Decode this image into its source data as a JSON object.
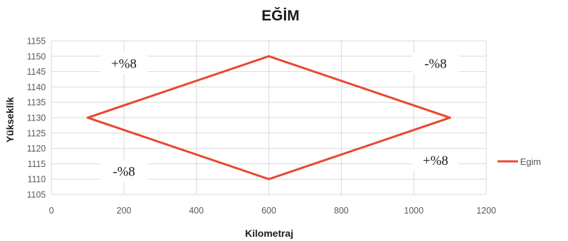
{
  "chart_data": {
    "type": "line",
    "title": "EĞİM",
    "xlabel": "Kilometraj",
    "ylabel": "Yükseklik",
    "xlim": [
      0,
      1200
    ],
    "ylim": [
      1105,
      1155
    ],
    "x_ticks": [
      0,
      200,
      400,
      600,
      800,
      1000,
      1200
    ],
    "y_ticks": [
      1105,
      1110,
      1115,
      1120,
      1125,
      1130,
      1135,
      1140,
      1145,
      1150,
      1155
    ],
    "grid": true,
    "legend_position": "right",
    "series": [
      {
        "name": "Egim",
        "color": "#e8482e",
        "x": [
          100,
          600,
          1100,
          600,
          100
        ],
        "y": [
          1130,
          1150,
          1130,
          1110,
          1130
        ]
      }
    ],
    "annotations": [
      {
        "text": "+%8",
        "x": 200,
        "y": 1147.5
      },
      {
        "text": "-%8",
        "x": 1060,
        "y": 1147.5
      },
      {
        "text": "-%8",
        "x": 200,
        "y": 1112.5
      },
      {
        "text": "+%8",
        "x": 1060,
        "y": 1116
      }
    ]
  }
}
